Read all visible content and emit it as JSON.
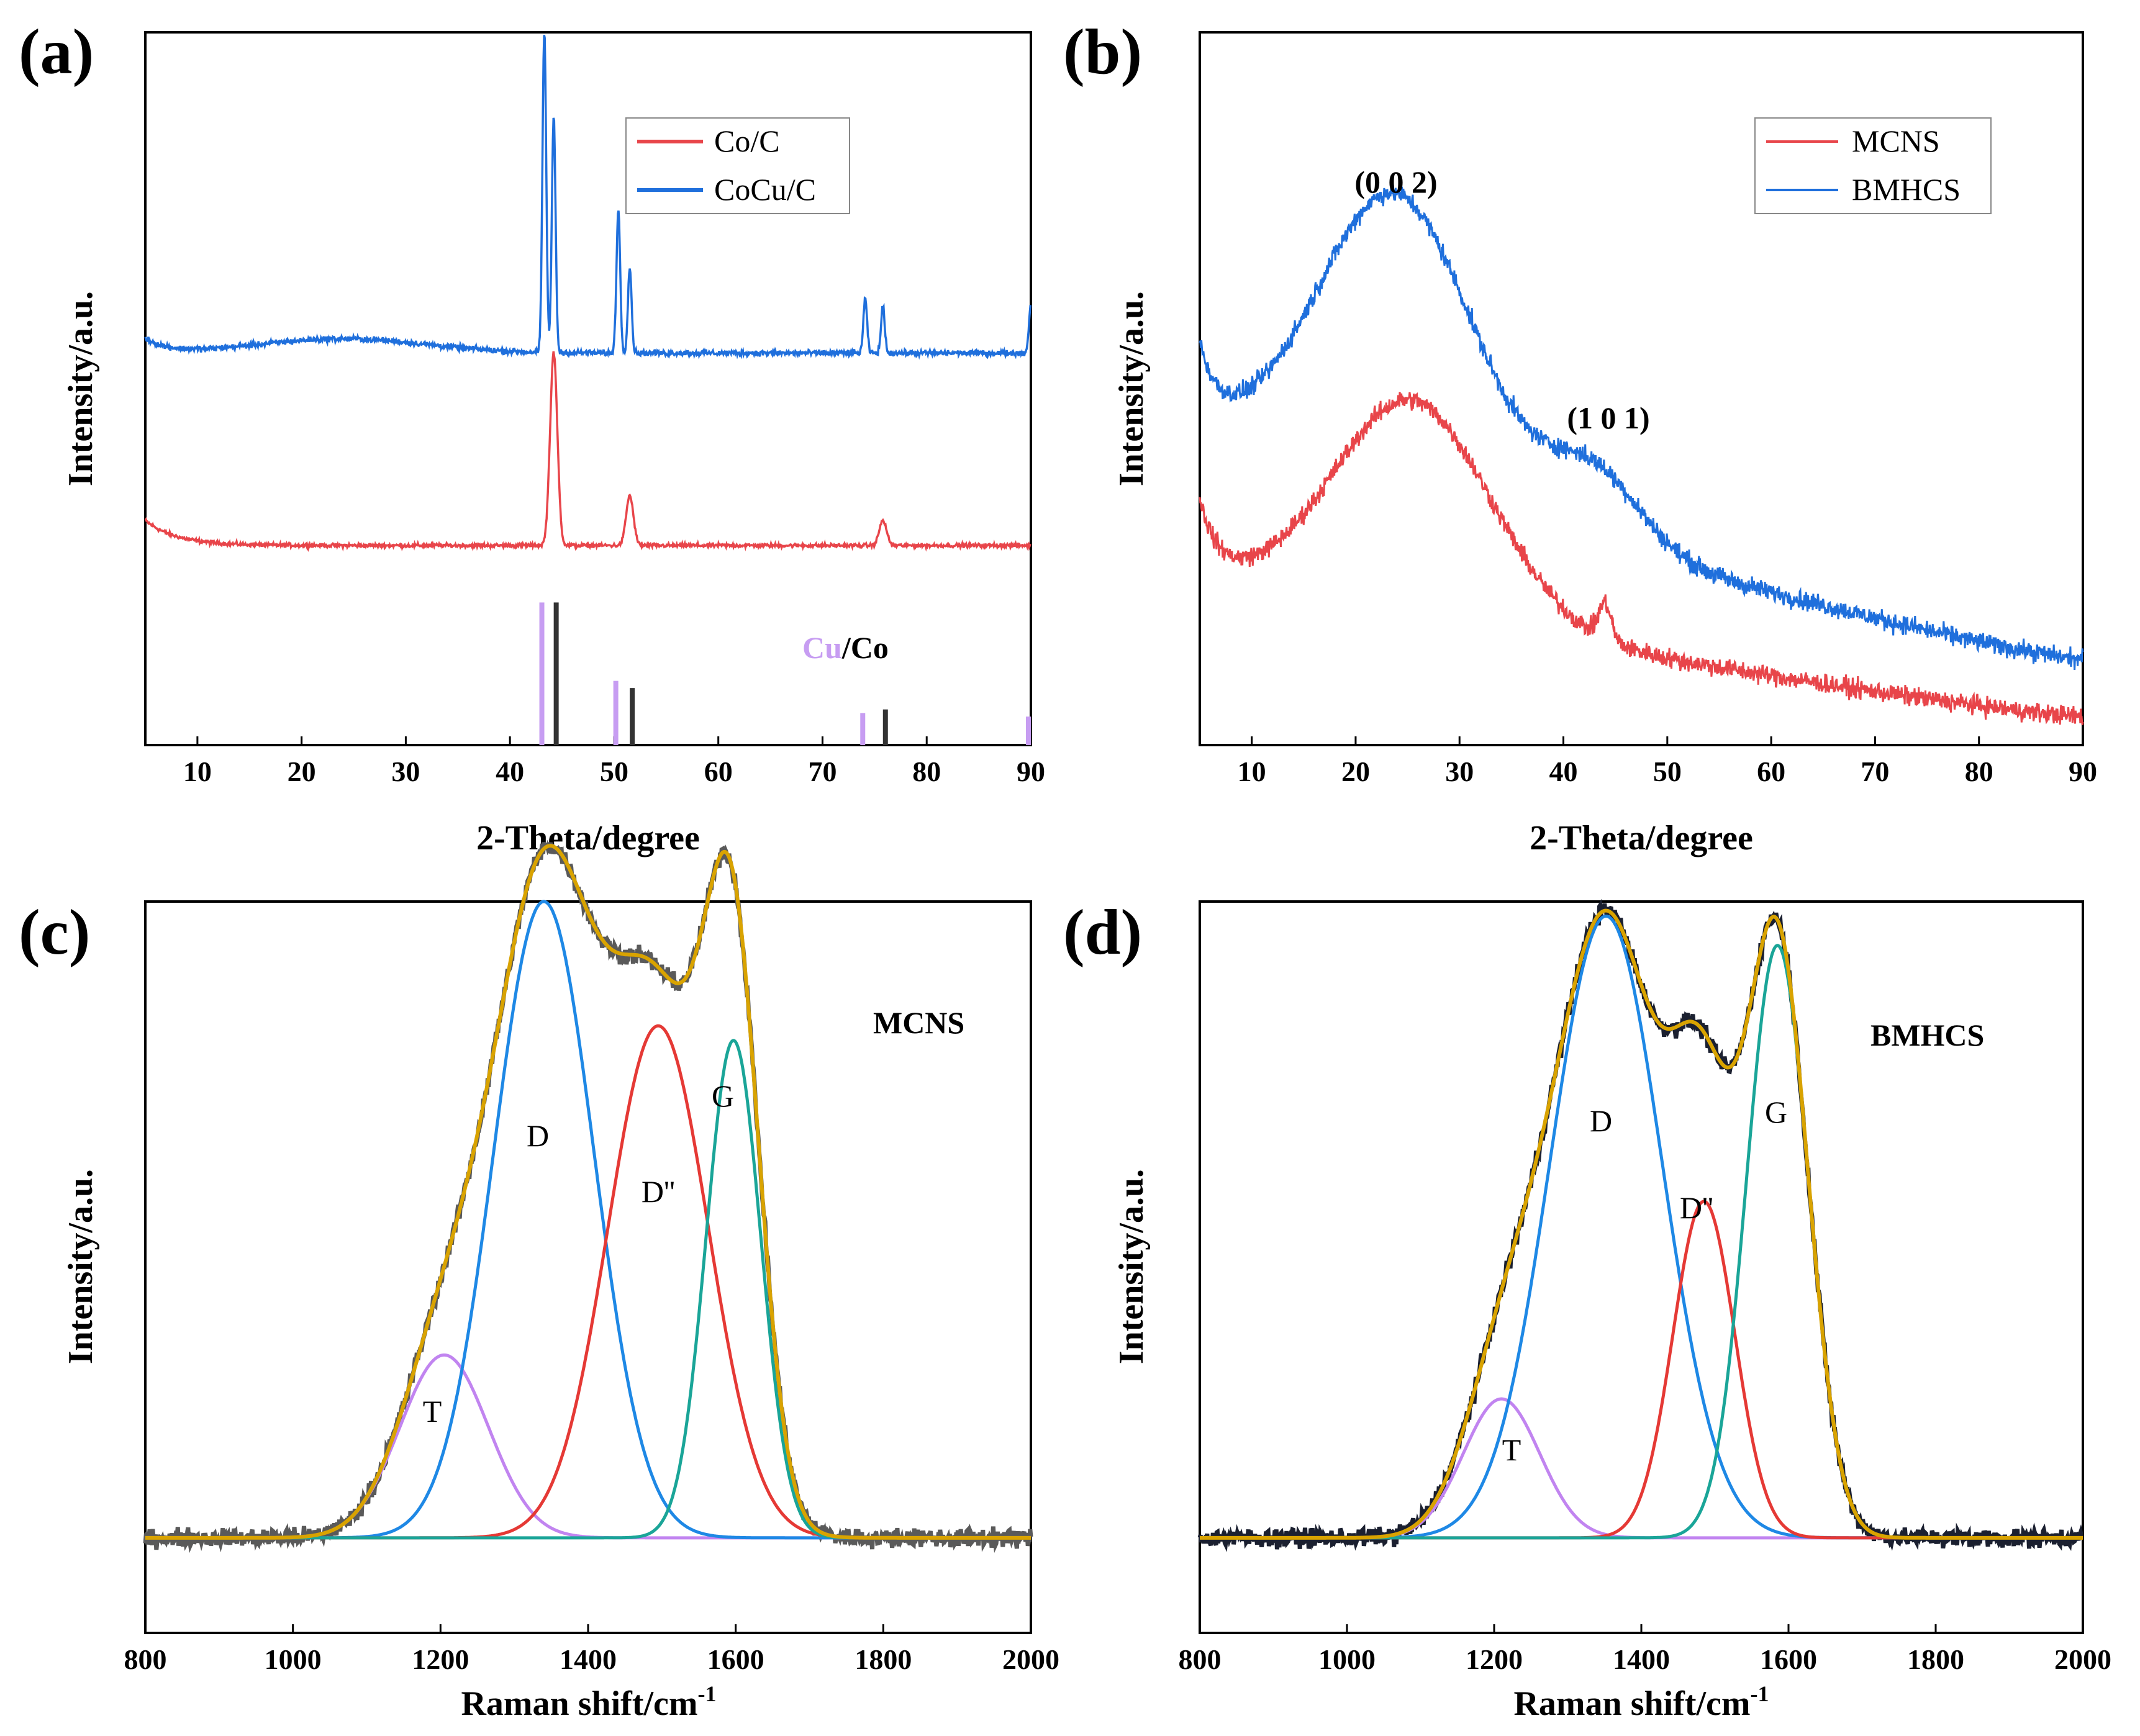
{
  "colors": {
    "red": "#e8454a",
    "blue": "#1f6fdc",
    "purple": "#c79df2",
    "dark": "#333333",
    "fit": "#d9a300",
    "D": "#1e88e5",
    "Dpp": "#e53935",
    "G": "#1aa598",
    "T": "#c184f0",
    "raw_c": "#5a5a5a",
    "raw_d": "#1b2030"
  },
  "chart_data": [
    {
      "panel": "(a)",
      "type": "line",
      "xlabel": "2-Theta/degree",
      "ylabel": "Intensity/a.u.",
      "xlim": [
        5,
        90
      ],
      "xticks": [
        "10",
        "20",
        "30",
        "40",
        "50",
        "60",
        "70",
        "80",
        "90"
      ],
      "legend": {
        "placement": "top-right",
        "entries": [
          "Co/C",
          "CoCu/C"
        ]
      },
      "series": [
        {
          "name": "Co/C",
          "baseline": 0.28,
          "peaks": [
            [
              44.2,
              0.27
            ],
            [
              51.5,
              0.07
            ],
            [
              75.8,
              0.035
            ]
          ]
        },
        {
          "name": "CoCu/C",
          "baseline": 0.55,
          "peaks": [
            [
              43.3,
              0.45
            ],
            [
              44.2,
              0.33
            ],
            [
              50.4,
              0.2
            ],
            [
              51.5,
              0.12
            ],
            [
              74.1,
              0.075
            ],
            [
              75.8,
              0.065
            ],
            [
              90,
              0.07
            ]
          ]
        }
      ],
      "reference_label": {
        "cu": "Cu",
        "sep": "/",
        "co": "Co"
      },
      "reference_lines": {
        "Cu": [
          [
            43.3,
            0.2
          ],
          [
            50.4,
            0.09
          ],
          [
            74.1,
            0.045
          ],
          [
            90,
            0.04
          ]
        ],
        "Co": [
          [
            44.2,
            0.2
          ],
          [
            51.5,
            0.08
          ],
          [
            75.8,
            0.05
          ]
        ]
      }
    },
    {
      "panel": "(b)",
      "type": "line",
      "xlabel": "2-Theta/degree",
      "ylabel": "Intensity/a.u.",
      "xlim": [
        5,
        90
      ],
      "xticks": [
        "10",
        "20",
        "30",
        "40",
        "50",
        "60",
        "70",
        "80",
        "90"
      ],
      "legend": {
        "placement": "top-right",
        "entries": [
          "MCNS",
          "BMHCS"
        ]
      },
      "annotations": [
        "(0 0 2)",
        "(1 0 1)"
      ],
      "series": [
        {
          "name": "MCNS",
          "hump_002": {
            "center": 25.5,
            "height": 0.3
          },
          "hump_101": {
            "center": 44.0,
            "height": 0.05
          }
        },
        {
          "name": "BMHCS",
          "hump_002": {
            "center": 24.0,
            "height": 0.41
          },
          "hump_101": {
            "center": 43.0,
            "height": 0.1
          }
        }
      ]
    },
    {
      "panel": "(c)",
      "type": "line",
      "xlabel": "Raman shift/cm",
      "xlabel_sup": "-1",
      "ylabel": "Intensity/a.u.",
      "xlim": [
        800,
        2000
      ],
      "xticks": [
        "800",
        "1000",
        "1200",
        "1400",
        "1600",
        "1800",
        "2000"
      ],
      "sample": "MCNS",
      "peak_labels": [
        "T",
        "D",
        "D''",
        "G"
      ],
      "components": [
        {
          "name": "T",
          "center": 1205,
          "height": 0.25,
          "width": 60
        },
        {
          "name": "D",
          "center": 1340,
          "height": 0.87,
          "width": 68
        },
        {
          "name": "D''",
          "center": 1495,
          "height": 0.7,
          "width": 68
        },
        {
          "name": "G",
          "center": 1597,
          "height": 0.68,
          "width": 37
        }
      ]
    },
    {
      "panel": "(d)",
      "type": "line",
      "xlabel": "Raman shift/cm",
      "xlabel_sup": "-1",
      "ylabel": "Intensity/a.u.",
      "xlim": [
        800,
        2000
      ],
      "xticks": [
        "800",
        "1000",
        "1200",
        "1400",
        "1600",
        "1800",
        "2000"
      ],
      "sample": "BMHCS",
      "peak_labels": [
        "T",
        "D",
        "D''",
        "G"
      ],
      "components": [
        {
          "name": "T",
          "center": 1210,
          "height": 0.19,
          "width": 52
        },
        {
          "name": "D",
          "center": 1352,
          "height": 0.85,
          "width": 76
        },
        {
          "name": "D''",
          "center": 1485,
          "height": 0.46,
          "width": 42
        },
        {
          "name": "G",
          "center": 1585,
          "height": 0.81,
          "width": 42
        }
      ]
    }
  ]
}
